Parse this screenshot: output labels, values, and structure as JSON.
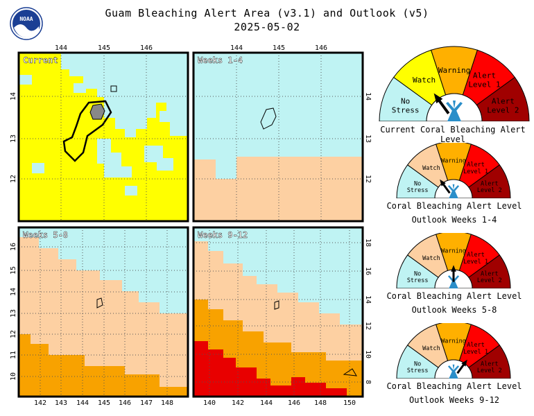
{
  "header": {
    "title": "Guam Bleaching Alert Area (v3.1) and Outlook (v5)",
    "date": "2025-05-02",
    "logo_text": "NOAA"
  },
  "colors": {
    "no_stress": "#bff3f3",
    "watch": "#ffff00",
    "warning": "#ffb000",
    "alert1": "#ff0000",
    "alert2": "#a00000",
    "outlook_watch": "#fdd0a2",
    "outlook_warning": "#f8a200",
    "outlook_alert1": "#e80000"
  },
  "maps": {
    "current": {
      "label": "Current",
      "lon_ticks": [
        "144",
        "145",
        "146"
      ],
      "lat_ticks": [
        "14",
        "13",
        "12"
      ]
    },
    "weeks_1_4": {
      "label": "Weeks 1-4",
      "lon_ticks": [
        "144",
        "145",
        "146"
      ],
      "lat_ticks": [
        "14",
        "13",
        "12"
      ]
    },
    "weeks_5_8": {
      "label": "Weeks 5-8",
      "lon_ticks": [
        "142",
        "143",
        "144",
        "145",
        "146",
        "147",
        "148"
      ],
      "lat_ticks": [
        "16",
        "15",
        "14",
        "13",
        "12",
        "11",
        "10"
      ]
    },
    "weeks_9_12": {
      "label": "Weeks 9-12",
      "lon_ticks": [
        "140",
        "142",
        "144",
        "146",
        "148",
        "150"
      ],
      "lat_ticks": [
        "18",
        "16",
        "14",
        "12",
        "10",
        "8"
      ]
    }
  },
  "gauges": [
    {
      "label_lines": [
        "Current Coral Bleaching Alert Level"
      ],
      "level": "Watch"
    },
    {
      "label_lines": [
        "Coral Bleaching Alert Level",
        "Outlook Weeks 1-4"
      ],
      "level": "Watch"
    },
    {
      "label_lines": [
        "Coral Bleaching Alert Level",
        "Outlook Weeks 5-8"
      ],
      "level": "Warning"
    },
    {
      "label_lines": [
        "Coral Bleaching Alert Level",
        "Outlook Weeks 9-12"
      ],
      "level": "Alert Level 1"
    }
  ],
  "gauge_segments": {
    "no_stress": [
      "No",
      "Stress"
    ],
    "watch": [
      "Watch"
    ],
    "warning": [
      "Warning"
    ],
    "alert1": [
      "Alert",
      "Level 1"
    ],
    "alert2": [
      "Alert",
      "Level 2"
    ]
  }
}
